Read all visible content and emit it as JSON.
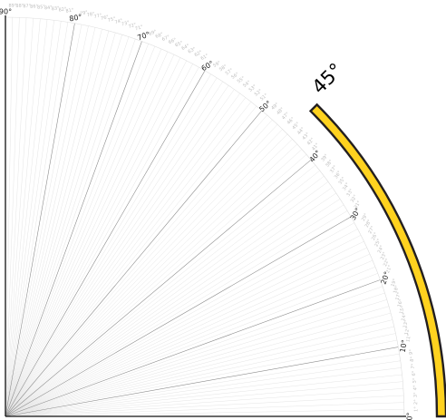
{
  "protractor": {
    "range_degrees": [
      0,
      90
    ],
    "major_step_degrees": 10,
    "minor_step_degrees": 1,
    "major_tick_labels": [
      "0°",
      "10°",
      "20°",
      "30°",
      "40°",
      "50°",
      "60°",
      "70°",
      "80°",
      "90°"
    ],
    "minor_tick_labels": [
      "1°",
      "2°",
      "3°",
      "4°",
      "5°",
      "6°",
      "7°",
      "8°",
      "9°",
      "11°",
      "12°",
      "13°",
      "14°",
      "15°",
      "16°",
      "17°",
      "18°",
      "19°",
      "21°",
      "22°",
      "23°",
      "24°",
      "25°",
      "26°",
      "27°",
      "28°",
      "29°",
      "31°",
      "32°",
      "33°",
      "34°",
      "35°",
      "36°",
      "37°",
      "38°",
      "39°",
      "41°",
      "42°",
      "43°",
      "44°",
      "45°",
      "46°",
      "47°",
      "48°",
      "49°",
      "51°",
      "52°",
      "53°",
      "54°",
      "55°",
      "56°",
      "57°",
      "58°",
      "59°",
      "61°",
      "62°",
      "63°",
      "64°",
      "65°",
      "66°",
      "67°",
      "68°",
      "69°",
      "71°",
      "72°",
      "73°",
      "74°",
      "75°",
      "76°",
      "77°",
      "78°",
      "79°",
      "81°",
      "82°",
      "83°",
      "84°",
      "85°",
      "86°",
      "87°",
      "88°",
      "89°"
    ]
  },
  "highlight": {
    "start_degrees": 0,
    "end_degrees": 45,
    "label": "45°",
    "fill_color": "#ffd21f",
    "stroke_color": "#231f20"
  },
  "colors": {
    "axis": "#111111",
    "major_ray": "#8c8c8c",
    "minor_ray": "#e4e4e4",
    "arc": "#dddddd"
  }
}
